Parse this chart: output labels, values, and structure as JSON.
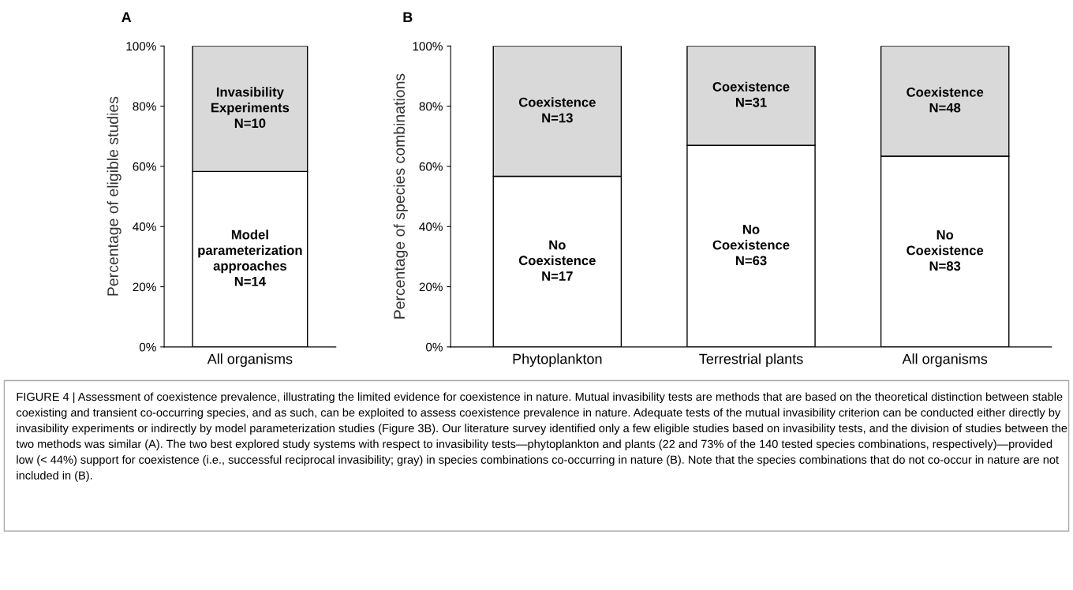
{
  "chart_data": [
    {
      "type": "bar",
      "title": "A",
      "ylabel": "Percentage of eligible studies",
      "categories": [
        "All organisms"
      ],
      "stacked": true,
      "ylim": [
        0,
        100
      ],
      "yticks": [
        {
          "value": 0,
          "label": "0%"
        },
        {
          "value": 20,
          "label": "20%"
        },
        {
          "value": 40,
          "label": "40%"
        },
        {
          "value": 60,
          "label": "60%"
        },
        {
          "value": 80,
          "label": "80%"
        },
        {
          "value": 100,
          "label": "100%"
        }
      ],
      "series": [
        {
          "color": "#ffffff",
          "values": [
            58.3
          ]
        },
        {
          "color": "#d9d9d9",
          "values": [
            41.7
          ]
        }
      ],
      "annotations": [
        "Model\nparameterization\napproaches\nN=14",
        "Invasibility\nExperiments\nN=10",
        "FIGURE 4 | Assessment of coexistence prevalence, illustrating the limited evidence for coexistence in nature. Mutual invasibility tests are methods that are based on the theoretical distinction between stable coexisting and transient co-occurring species, and as such, can be exploited to assess coexistence prevalence in nature. Adequate tests of the mutual invasibility criterion can be conducted either directly by invasibility experiments or indirectly by model parameterization studies (Figure 3B). Our literature survey identified only a few eligible studies based on invasibility tests, and the division of studies between the two methods was similar (A). The two best explored study systems with respect to invasibility tests—phytoplankton and plants (22 and 73% of the 140 tested species combinations, respectively)—provided low (< 44%) support for coexistence (i.e., successful reciprocal invasibility; gray) in species combinations co-occurring in nature (B). Note that the species combinations that do not co-occur in nature are not included in (B)."
      ]
    },
    {
      "type": "bar",
      "title": "B",
      "ylabel": "Percentage of species combinations",
      "categories": [
        "Phytoplankton",
        "Terrestrial plants",
        "All organisms"
      ],
      "stacked": true,
      "ylim": [
        0,
        100
      ],
      "yticks": [
        {
          "value": 0,
          "label": "0%"
        },
        {
          "value": 20,
          "label": "20%"
        },
        {
          "value": 40,
          "label": "40%"
        },
        {
          "value": 60,
          "label": "60%"
        },
        {
          "value": 80,
          "label": "80%"
        },
        {
          "value": 100,
          "label": "100%"
        }
      ],
      "series": [
        {
          "color": "#ffffff",
          "values": [
            56.7,
            67.0,
            63.4
          ]
        },
        {
          "color": "#d9d9d9",
          "values": [
            43.3,
            33.0,
            36.6
          ]
        }
      ],
      "annotations": [
        "No\nCoexistence\nN=17",
        "No\nCoexistence\nN=63",
        "No\nCoexistence\nN=83",
        "Coexistence\nN=13",
        "Coexistence\nN=31",
        "Coexistence\nN=48"
      ]
    }
  ]
}
